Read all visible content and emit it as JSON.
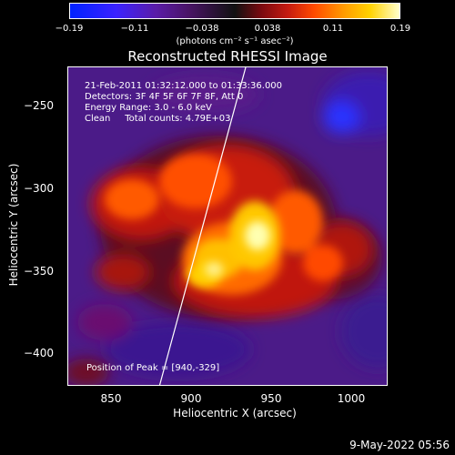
{
  "colorbar": {
    "ticks": [
      "−0.19",
      "−0.11",
      "−0.038",
      "0.038",
      "0.11",
      "0.19"
    ],
    "unit": "(photons cm⁻² s⁻¹ asec⁻²)"
  },
  "title": "Reconstructed RHESSI Image",
  "info": {
    "line1": "21-Feb-2011 01:32:12.000 to 01:33:36.000",
    "line2": "Detectors: 3F 4F 5F 6F 7F 8F, Att 0",
    "line3": "Energy Range: 3.0 - 6.0 keV",
    "line4": "Clean     Total counts: 4.79E+03",
    "peak": "Position of Peak = [940,-329]"
  },
  "axes": {
    "xlabel": "Heliocentric X (arcsec)",
    "ylabel": "Heliocentric Y (arcsec)",
    "xticks": [
      "850",
      "900",
      "950",
      "1000"
    ],
    "yticks": [
      "−250",
      "−300",
      "−350",
      "−400"
    ]
  },
  "footer": {
    "date": "9-May-2022 05:56"
  },
  "colors": {
    "background": "#000000",
    "foreground": "#ffffff"
  }
}
